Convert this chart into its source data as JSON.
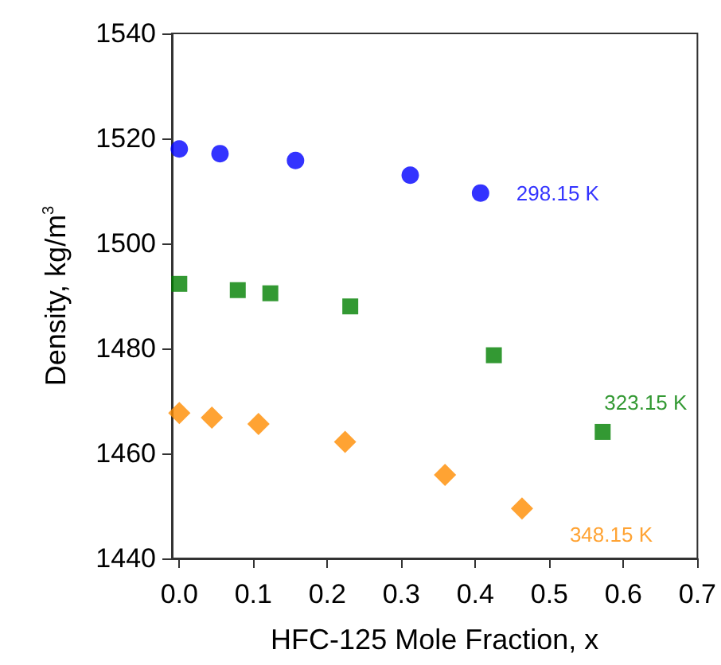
{
  "chart_data": {
    "type": "scatter",
    "xlabel": "HFC-125 Mole Fraction, x",
    "ylabel": "Density, kg/m$^{3}$",
    "xlim": [
      -0.01,
      0.7
    ],
    "ylim": [
      1440,
      1540
    ],
    "xticks": [
      {
        "value": 0,
        "label": "0.0"
      },
      {
        "value": 0.1,
        "label": "0.1"
      },
      {
        "value": 0.2,
        "label": "0.2"
      },
      {
        "value": 0.3,
        "label": "0.3"
      },
      {
        "value": 0.4,
        "label": "0.4"
      },
      {
        "value": 0.5,
        "label": "0.5"
      },
      {
        "value": 0.6,
        "label": "0.6"
      },
      {
        "value": 0.7,
        "label": "0.7"
      }
    ],
    "yticks": [
      1440,
      1460,
      1480,
      1500,
      1520,
      1540
    ],
    "grid": false,
    "legend": false,
    "series": [
      {
        "name": "298.15 K",
        "color": "#0000ff",
        "marker": "circle",
        "x": [
          0,
          0.055,
          0.157,
          0.312,
          0.407
        ],
        "values": [
          1518.0,
          1517.1,
          1515.8,
          1513.0,
          1509.6
        ]
      },
      {
        "name": "323.15 K",
        "color": "#008000",
        "marker": "square",
        "x": [
          0,
          0.079,
          0.123,
          0.231,
          0.425,
          0.572
        ],
        "values": [
          1492.3,
          1491.1,
          1490.5,
          1488.0,
          1478.7,
          1464.1
        ]
      },
      {
        "name": "348.15 K",
        "color": "#ff8c00",
        "marker": "diamond",
        "x": [
          0,
          0.044,
          0.107,
          0.224,
          0.359,
          0.463
        ],
        "values": [
          1467.7,
          1466.8,
          1465.6,
          1462.2,
          1455.9,
          1449.5
        ]
      }
    ]
  }
}
